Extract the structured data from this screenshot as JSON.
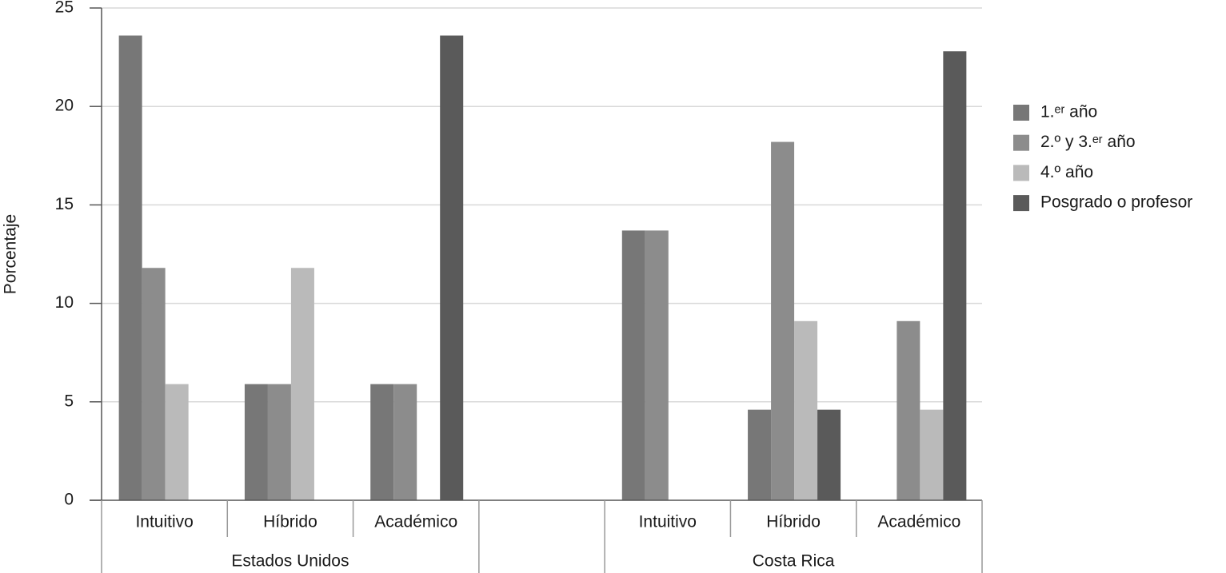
{
  "chart_data": {
    "type": "bar",
    "y_label": "Porcentaje",
    "categories": [
      "Intuitivo",
      "Híbrido",
      "Académico",
      null,
      "Intuitivo",
      "Híbrido",
      "Académico"
    ],
    "groups": [
      "Estados Unidos",
      "Costa Rica"
    ],
    "series": [
      {
        "name": "1.ᵉʳ año",
        "color": "#777777",
        "values": [
          23.6,
          5.9,
          5.9,
          null,
          13.7,
          4.6,
          0
        ]
      },
      {
        "name": "2.º y 3.ᵉʳ año",
        "color": "#8c8c8c",
        "values": [
          11.8,
          5.9,
          5.9,
          null,
          13.7,
          18.2,
          9.1
        ]
      },
      {
        "name": "4.º año",
        "color": "#bababa",
        "values": [
          5.9,
          11.8,
          0,
          null,
          0,
          9.1,
          4.6
        ]
      },
      {
        "name": "Posgrado o profesor",
        "color": "#5a5a5a",
        "values": [
          0,
          0,
          23.6,
          null,
          0,
          4.6,
          22.8
        ]
      }
    ],
    "ylim": [
      0,
      25
    ],
    "yticks": [
      0,
      5,
      10,
      15,
      20,
      25
    ],
    "grid": true,
    "legend": "right"
  }
}
